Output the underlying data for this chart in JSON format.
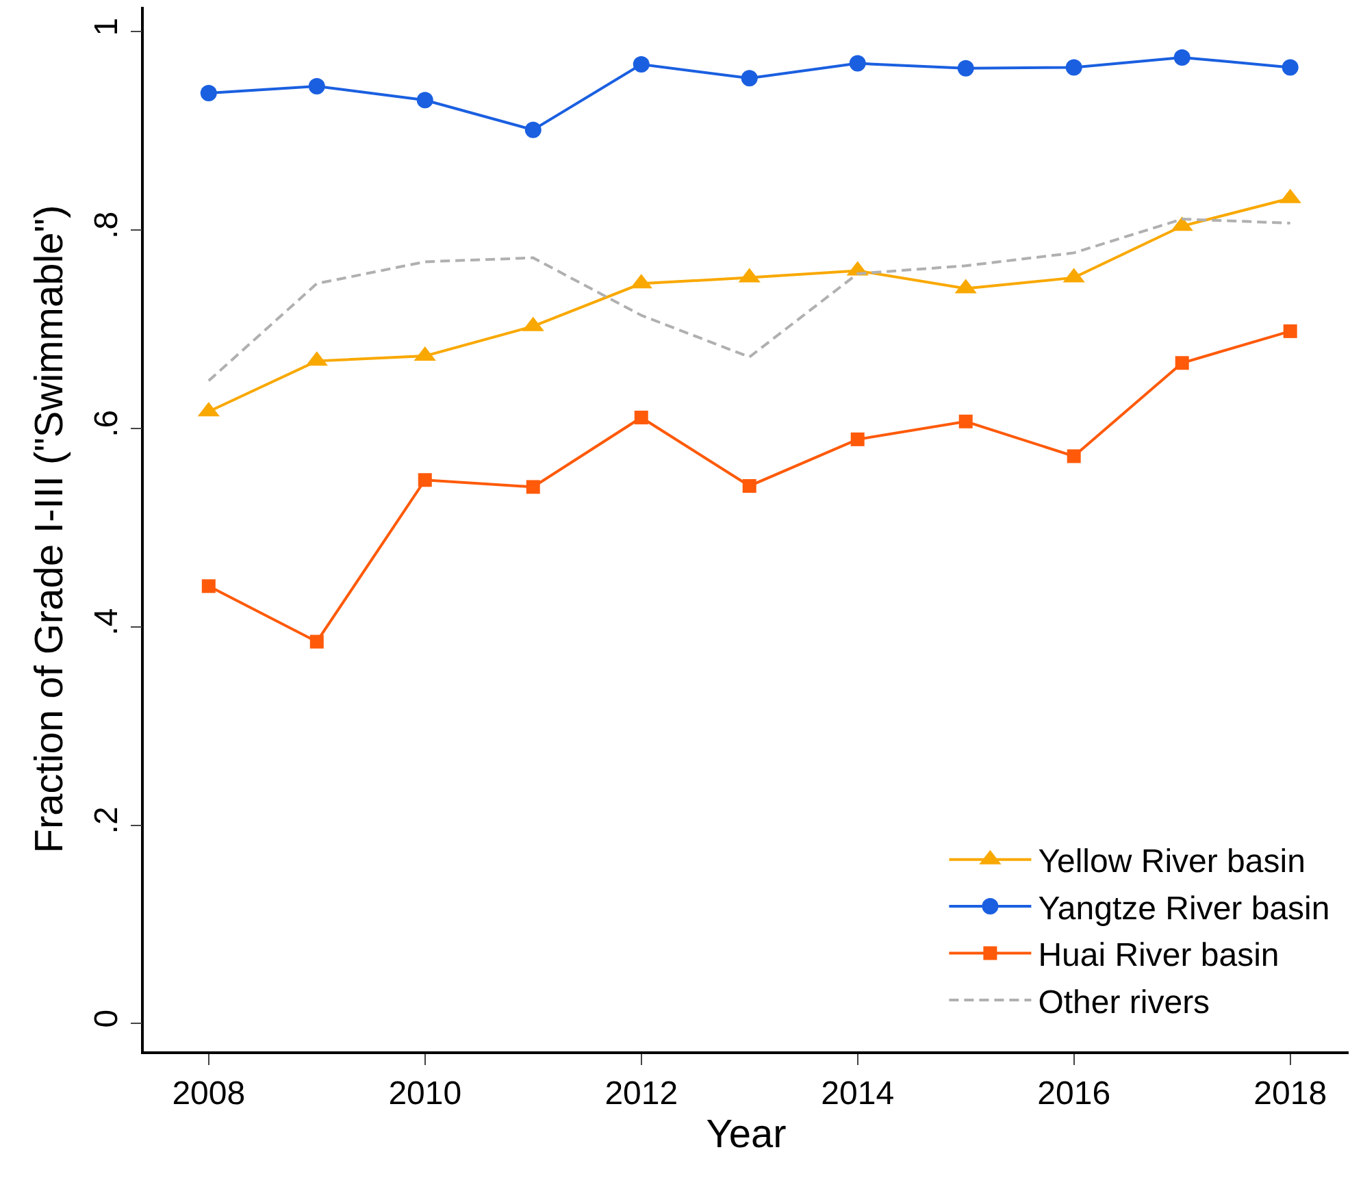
{
  "chart_data": {
    "type": "line",
    "xlabel": "Year",
    "ylabel": "Fraction of Grade I-III (\"Swimmable\")",
    "x": [
      2008,
      2009,
      2010,
      2011,
      2012,
      2013,
      2014,
      2015,
      2016,
      2017,
      2018
    ],
    "series": [
      {
        "name": "Yellow River basin",
        "color": "#f9a800",
        "marker": "triangle",
        "line_style": "solid",
        "values": [
          0.617,
          0.668,
          0.673,
          0.703,
          0.746,
          0.752,
          0.759,
          0.741,
          0.752,
          0.804,
          0.832
        ]
      },
      {
        "name": "Yangtze River basin",
        "color": "#1a5fe0",
        "marker": "circle",
        "line_style": "solid",
        "values": [
          0.938,
          0.945,
          0.931,
          0.901,
          0.967,
          0.953,
          0.968,
          0.963,
          0.964,
          0.974,
          0.964
        ]
      },
      {
        "name": "Huai River basin",
        "color": "#ff5a0a",
        "marker": "square",
        "line_style": "solid",
        "values": [
          0.441,
          0.385,
          0.548,
          0.541,
          0.611,
          0.542,
          0.589,
          0.607,
          0.572,
          0.666,
          0.698
        ]
      },
      {
        "name": "Other rivers",
        "color": "#b0b0b0",
        "marker": "none",
        "line_style": "dashed",
        "values": [
          0.648,
          0.746,
          0.768,
          0.772,
          0.714,
          0.672,
          0.756,
          0.764,
          0.777,
          0.811,
          0.807
        ]
      }
    ],
    "xlim": [
      2007.4,
      2018.54
    ],
    "xticks": [
      2008,
      2010,
      2012,
      2014,
      2016,
      2018
    ],
    "ylim": [
      -0.028,
      1.025
    ],
    "yticks": [
      {
        "value": 0,
        "label": "0"
      },
      {
        "value": 0.2,
        "label": ".2"
      },
      {
        "value": 0.4,
        "label": ".4"
      },
      {
        "value": 0.6,
        "label": ".6"
      },
      {
        "value": 0.8,
        "label": ".8"
      },
      {
        "value": 1,
        "label": "1"
      }
    ],
    "grid": false,
    "legend": "bottom right"
  }
}
